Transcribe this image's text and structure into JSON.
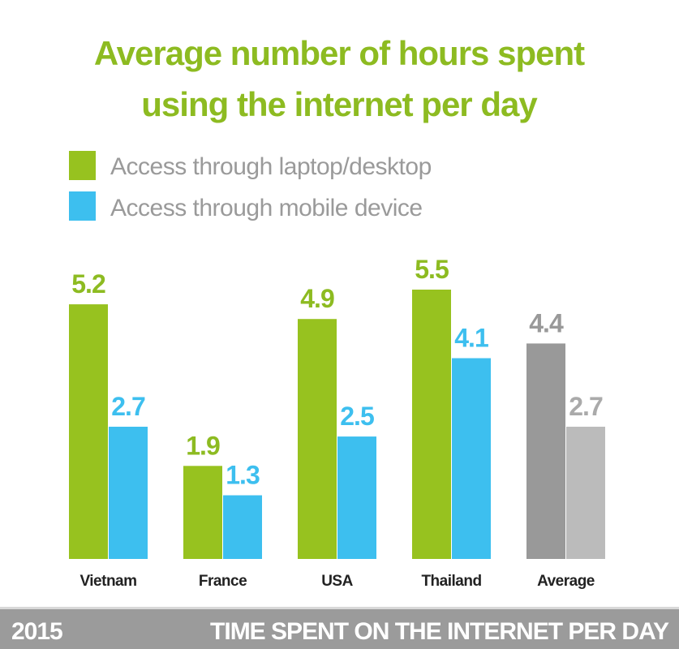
{
  "chart_data": {
    "type": "bar",
    "title": "Average number of hours spent using the internet per day",
    "title_lines": [
      "Average number of hours spent",
      "using the internet per day"
    ],
    "categories": [
      "Vietnam",
      "France",
      "USA",
      "Thailand",
      "Average"
    ],
    "series": [
      {
        "name": "Access through laptop/desktop",
        "values": [
          5.2,
          1.9,
          4.9,
          5.5,
          4.4
        ],
        "color": "#97c21f",
        "average_color": "#999999"
      },
      {
        "name": "Access through mobile device",
        "values": [
          2.7,
          1.3,
          2.5,
          4.1,
          2.7
        ],
        "color": "#3dbfef",
        "average_color": "#bbbbbb"
      }
    ],
    "legend_placement": "top-left",
    "grid": false,
    "ylim": [
      0,
      5.5
    ],
    "value_label_colors": {
      "laptop": "#8dbb21",
      "mobile": "#3dbfef",
      "average_laptop": "#999999",
      "average_mobile": "#aaaaaa"
    }
  },
  "footer": {
    "year": "2015",
    "caption": "TIME SPENT ON THE INTERNET PER DAY",
    "background": "#9b9b9b"
  }
}
